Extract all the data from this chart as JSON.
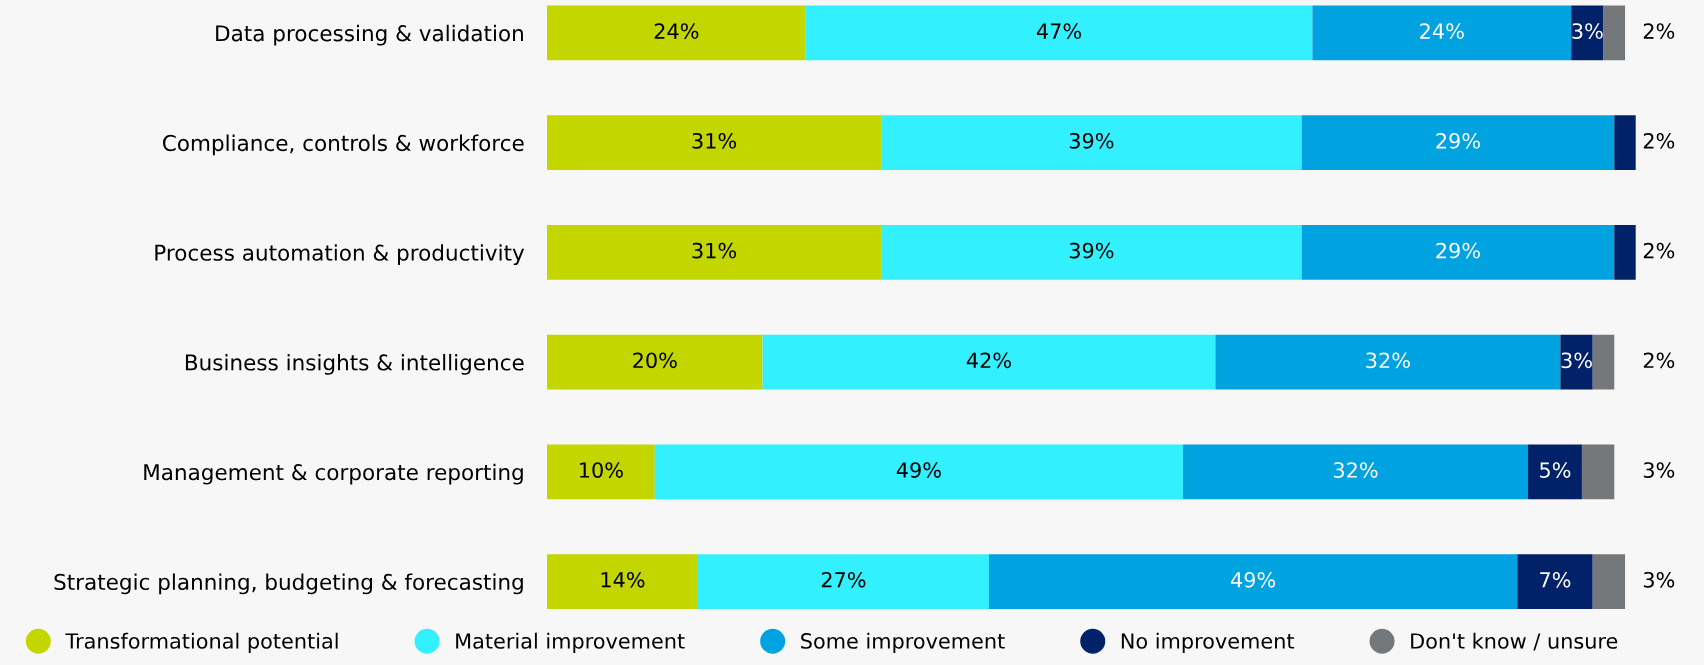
{
  "chart_data": {
    "type": "bar",
    "orientation": "horizontal",
    "stacked": true,
    "relative": false,
    "xlim": [
      0,
      101
    ],
    "tick_labels": "y",
    "legend": "bottom",
    "marker": "circle",
    "categories": [
      "Data processing & validation",
      "Compliance, controls & workforce",
      "Process automation & productivity",
      "Business insights & intelligence",
      "Management & corporate reporting",
      "Strategic planning, budgeting & forecasting"
    ],
    "series": [
      {
        "name": "Transformational potential",
        "color": "#c4d600",
        "values": [
          24,
          31,
          31,
          20,
          10,
          14
        ],
        "value_labels": [
          "24%",
          "31%",
          "31%",
          "20%",
          "10%",
          "14%"
        ]
      },
      {
        "name": "Material improvement",
        "color": "#33f0ff",
        "values": [
          47,
          39,
          39,
          42,
          49,
          27
        ],
        "value_labels": [
          "47%",
          "39%",
          "39%",
          "42%",
          "49%",
          "27%"
        ]
      },
      {
        "name": "Some improvement",
        "color": "#00a3e0",
        "values": [
          24,
          29,
          29,
          32,
          32,
          49
        ],
        "value_labels": [
          "24%",
          "29%",
          "29%",
          "32%",
          "32%",
          "49%"
        ]
      },
      {
        "name": "No improvement",
        "color": "#012169",
        "values": [
          3,
          2,
          2,
          3,
          5,
          7
        ],
        "value_labels": [
          "3%",
          "2%",
          "2%",
          "3%",
          "5%",
          "7%"
        ]
      },
      {
        "name": "Don't know / unsure",
        "color": "#75787b",
        "values": [
          2,
          null,
          null,
          2,
          3,
          3
        ],
        "value_labels": [
          "2%",
          null,
          null,
          "2%",
          "3%",
          "3%"
        ]
      }
    ]
  }
}
